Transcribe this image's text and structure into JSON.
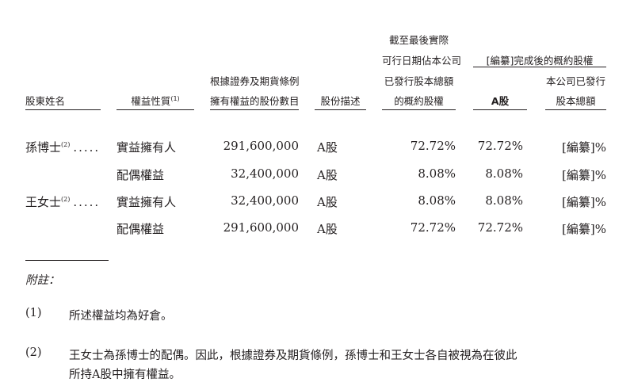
{
  "table": {
    "headers": {
      "shareholder_name": "股東姓名",
      "nature_of_interest": "權益性質",
      "nature_note": "(1)",
      "shares_held_line1": "根據證券及期貨條例",
      "shares_held_line2": "擁有權益的股份數目",
      "share_description": "股份描述",
      "pct_latest_line1": "截至最後實際",
      "pct_latest_line2": "可行日期佔本公司",
      "pct_latest_line3": "已發行股本總額",
      "pct_latest_line4": "的概約股權",
      "group_after": "[編纂]完成後的概約股權",
      "a_shares": "A股",
      "total_line1": "本公司已發行",
      "total_line2": "股本總額"
    },
    "rows": [
      {
        "name": "孫博士",
        "note": "(2)",
        "dots": ".....",
        "nature": "實益擁有人",
        "shares": "291,600,000",
        "desc": "A股",
        "pct_latest": "72.72%",
        "pct_a": "72.72%",
        "pct_total": "[編纂]%"
      },
      {
        "name": "",
        "note": "",
        "dots": "",
        "nature": "配偶權益",
        "shares": "32,400,000",
        "desc": "A股",
        "pct_latest": "8.08%",
        "pct_a": "8.08%",
        "pct_total": "[編纂]%"
      },
      {
        "name": "王女士",
        "note": "(2)",
        "dots": ".....",
        "nature": "實益擁有人",
        "shares": "32,400,000",
        "desc": "A股",
        "pct_latest": "8.08%",
        "pct_a": "8.08%",
        "pct_total": "[編纂]%"
      },
      {
        "name": "",
        "note": "",
        "dots": "",
        "nature": "配偶權益",
        "shares": "291,600,000",
        "desc": "A股",
        "pct_latest": "72.72%",
        "pct_a": "72.72%",
        "pct_total": "[編纂]%"
      }
    ]
  },
  "notes": {
    "title": "附註：",
    "items": [
      {
        "num": "(1)",
        "line1": "所述權益均為好倉。",
        "line2": ""
      },
      {
        "num": "(2)",
        "line1": "王女士為孫博士的配偶。因此，根據證券及期貨條例，孫博士和王女士各自被視為在彼此",
        "line2": "所持A股中擁有權益。"
      }
    ]
  }
}
